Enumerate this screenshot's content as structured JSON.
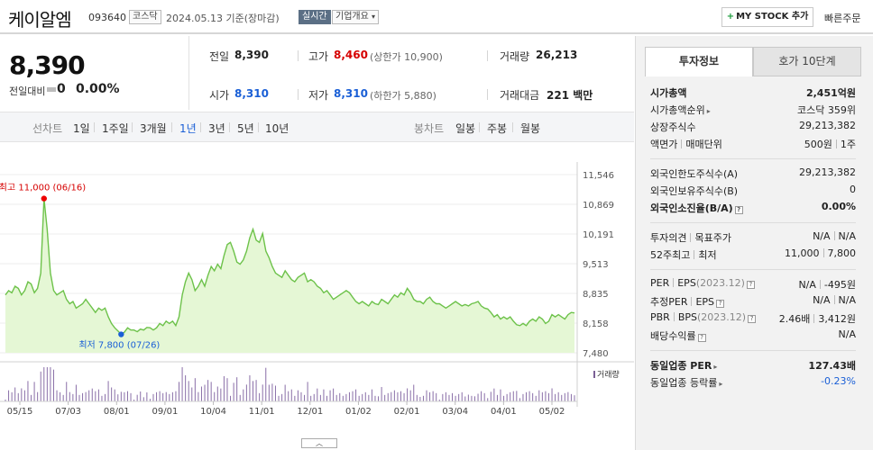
{
  "header": {
    "name": "케이알엠",
    "code": "093640",
    "market": "코스닥",
    "date": "2024.05.13 기준(장마감)",
    "realtime": "실시간",
    "company_info": "기업개요",
    "mystock": "MY STOCK 추가",
    "quick_order": "빠른주문"
  },
  "price": {
    "current": "8,390",
    "change_label": "전일대비",
    "change_value": "0",
    "change_rate": "0.00%"
  },
  "summary": {
    "prev_label": "전일",
    "prev": "8,390",
    "high_label": "고가",
    "high": "8,460",
    "upper_limit": "(상한가 10,900)",
    "volume_label": "거래량",
    "volume": "26,213",
    "open_label": "시가",
    "open": "8,310",
    "low_label": "저가",
    "low": "8,310",
    "lower_limit": "(하한가 5,880)",
    "amount_label": "거래대금",
    "amount": "221 백만"
  },
  "period_bar": {
    "line_title": "선차트",
    "line_items": [
      "1일",
      "1주일",
      "3개월",
      "1년",
      "3년",
      "5년",
      "10년"
    ],
    "line_selected": "1년",
    "candle_title": "봉차트",
    "candle_items": [
      "일봉",
      "주봉",
      "월봉"
    ]
  },
  "chart_data": {
    "type": "area",
    "y_ticks": [
      "11,546",
      "10,869",
      "10,191",
      "9,513",
      "8,835",
      "8,158",
      "7,480"
    ],
    "ylim": [
      7480,
      11546
    ],
    "x_labels": [
      "05/15",
      "07/03",
      "08/01",
      "09/01",
      "10/04",
      "11/01",
      "12/01",
      "01/02",
      "02/01",
      "03/04",
      "04/01",
      "05/02"
    ],
    "high_annotation": "최고 11,000 (06/16)",
    "low_annotation": "최저 7,800 (07/26)",
    "volume_label": "거래량",
    "line_color": "#6dc24a",
    "fill_color": "#e5f7d5",
    "series": [
      {
        "values": [
          8800,
          8900,
          8850,
          9000,
          8950,
          8800,
          8900,
          9100,
          9050,
          8850,
          8950,
          9300,
          11000,
          10300,
          9300,
          8900,
          8800,
          8850,
          8900,
          8700,
          8600,
          8650,
          8500,
          8550,
          8600,
          8700,
          8600,
          8500,
          8400,
          8500,
          8450,
          8500,
          8300,
          8150,
          8050,
          7980,
          7900,
          7950,
          8050,
          8000,
          8000,
          7960,
          8020,
          8000,
          8060,
          8050,
          8000,
          8050,
          8150,
          8100,
          8200,
          8150,
          8200,
          8100,
          8300,
          8800,
          9100,
          9300,
          9150,
          8900,
          9000,
          9150,
          9000,
          9250,
          9450,
          9350,
          9500,
          9400,
          9700,
          9950,
          10000,
          9800,
          9550,
          9500,
          9600,
          9800,
          10100,
          10300,
          10050,
          10000,
          10200,
          9800,
          9650,
          9450,
          9300,
          9250,
          9200,
          9350,
          9250,
          9150,
          9100,
          9200,
          9250,
          9300,
          9100,
          9150,
          9100,
          9000,
          8950,
          8850,
          8900,
          8800,
          8700,
          8750,
          8800,
          8850,
          8900,
          8850,
          8750,
          8650,
          8600,
          8650,
          8600,
          8550,
          8650,
          8600,
          8580,
          8700,
          8650,
          8600,
          8700,
          8800,
          8750,
          8850,
          8800,
          8950,
          8850,
          8700,
          8650,
          8650,
          8600,
          8700,
          8750,
          8650,
          8600,
          8600,
          8550,
          8500,
          8550,
          8600,
          8650,
          8600,
          8550,
          8580,
          8550,
          8600,
          8620,
          8650,
          8550,
          8500,
          8480,
          8400,
          8300,
          8350,
          8250,
          8300,
          8250,
          8300,
          8200,
          8120,
          8100,
          8150,
          8100,
          8200,
          8250,
          8200,
          8300,
          8250,
          8150,
          8200,
          8350,
          8300,
          8350,
          8300,
          8250,
          8350,
          8400,
          8390
        ]
      }
    ]
  },
  "invest_tabs": [
    "투자정보",
    "호가 10단계"
  ],
  "invest_info": {
    "market_cap_label": "시가총액",
    "market_cap": "2,451억원",
    "rank_label": "시가총액순위",
    "rank": "코스닥 359위",
    "shares_label": "상장주식수",
    "shares": "29,213,382",
    "face_label_a": "액면가",
    "face_label_b": "매매단위",
    "face_val_a": "500원",
    "face_val_b": "1주",
    "foreign_limit_label": "외국인한도주식수(A)",
    "foreign_limit": "29,213,382",
    "foreign_hold_label": "외국인보유주식수(B)",
    "foreign_hold": "0",
    "foreign_rate_label": "외국인소진율(B/A)",
    "foreign_rate": "0.00%",
    "opinion_label_a": "투자의견",
    "opinion_label_b": "목표주가",
    "opinion_val_a": "N/A",
    "opinion_val_b": "N/A",
    "w52_label_a": "52주최고",
    "w52_label_b": "최저",
    "w52_high": "11,000",
    "w52_low": "7,800",
    "per_label_a": "PER",
    "per_label_b": "EPS",
    "per_year": "(2023.12)",
    "per_val": "N/A",
    "eps_val": "-495원",
    "est_label_a": "추정PER",
    "est_label_b": "EPS",
    "est_per": "N/A",
    "est_eps": "N/A",
    "pbr_label_a": "PBR",
    "pbr_label_b": "BPS",
    "pbr_year": "(2023.12)",
    "pbr_val": "2.46배",
    "bps_val": "3,412원",
    "div_label": "배당수익률",
    "div_val": "N/A",
    "ind_per_label": "동일업종 PER",
    "ind_per": "127.43배",
    "ind_rate_label": "동일업종 등락률",
    "ind_rate": "-0.23%"
  }
}
